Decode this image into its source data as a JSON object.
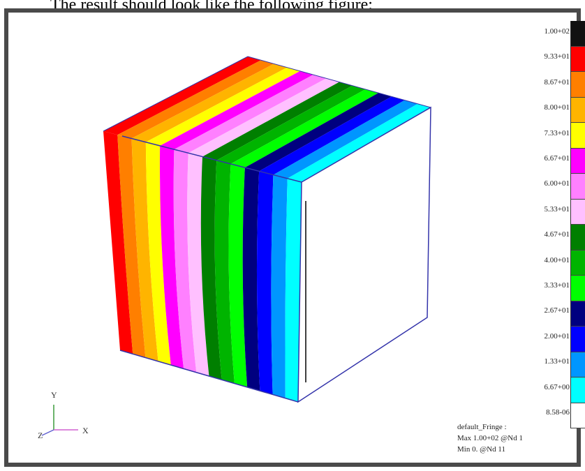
{
  "caption": "The result should look like the following figure:",
  "legend": {
    "labels": [
      "1.00+02",
      "9.33+01",
      "8.67+01",
      "8.00+01",
      "7.33+01",
      "6.67+01",
      "6.00+01",
      "5.33+01",
      "4.67+01",
      "4.00+01",
      "3.33+01",
      "2.67+01",
      "2.00+01",
      "1.33+01",
      "6.67+00",
      "8.58-06"
    ],
    "colors": [
      "#111111",
      "#ff0000",
      "#ff7f00",
      "#ffb400",
      "#ffff00",
      "#ff00ff",
      "#ff80ff",
      "#ffc0ff",
      "#007f00",
      "#00b400",
      "#00ff00",
      "#00007f",
      "#0000ff",
      "#0096ff",
      "#00ffff",
      "#ffffff"
    ]
  },
  "fringe_info": {
    "title": "default_Fringe :",
    "max": "Max 1.00+02 @Nd 1",
    "min": "Min 0. @Nd 11"
  },
  "axes": {
    "x": "X",
    "y": "Y",
    "z": "Z"
  },
  "band_colors": [
    "#ff0000",
    "#ff7f00",
    "#ffb400",
    "#ffff00",
    "#ff00ff",
    "#ff80ff",
    "#ffc0ff",
    "#007f00",
    "#00b400",
    "#00ff00",
    "#00007f",
    "#0000ff",
    "#0096ff",
    "#00ffff"
  ],
  "edge_color": "#3333aa"
}
